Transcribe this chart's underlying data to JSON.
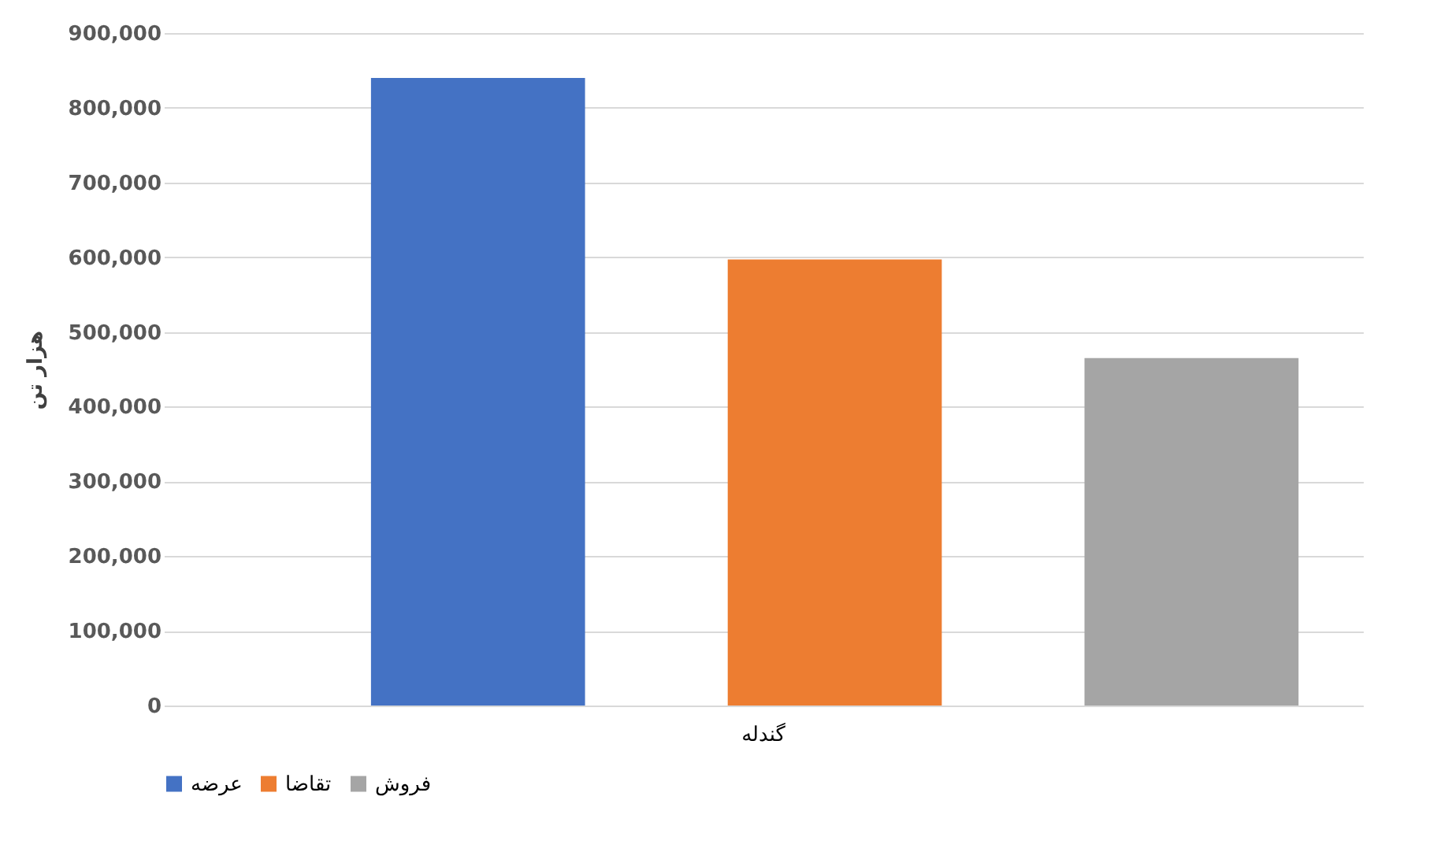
{
  "chart_data": {
    "type": "bar",
    "categories": [
      "گندله"
    ],
    "ylabel": "هزار تن",
    "series": [
      {
        "name": "عرضه",
        "color": "#4472c4",
        "values": [
          840000
        ]
      },
      {
        "name": "تقاضا",
        "color": "#ed7d31",
        "values": [
          597000
        ]
      },
      {
        "name": "فروش",
        "color": "#a5a5a5",
        "values": [
          465000
        ]
      }
    ],
    "ylim": [
      0,
      900000
    ],
    "yticks": [
      {
        "value": 0,
        "label": "0"
      },
      {
        "value": 100000,
        "label": "100,000"
      },
      {
        "value": 200000,
        "label": "200,000"
      },
      {
        "value": 300000,
        "label": "300,000"
      },
      {
        "value": 400000,
        "label": "400,000"
      },
      {
        "value": 500000,
        "label": "500,000"
      },
      {
        "value": 600000,
        "label": "600,000"
      },
      {
        "value": 700000,
        "label": "700,000"
      },
      {
        "value": 800000,
        "label": "800,000"
      },
      {
        "value": 900000,
        "label": "900,000"
      }
    ],
    "grid": "y",
    "legend": "bottom"
  }
}
